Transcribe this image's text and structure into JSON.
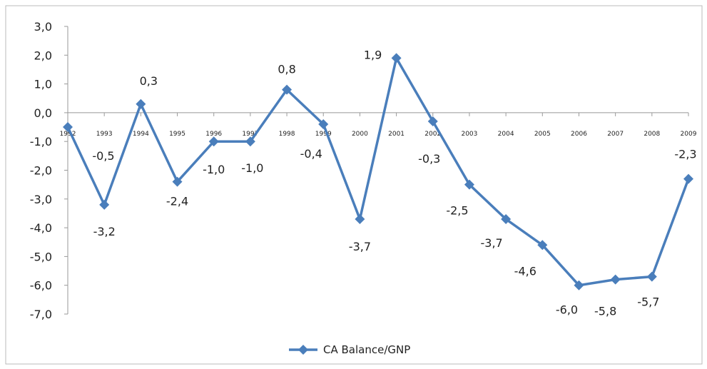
{
  "chart_data": {
    "type": "line",
    "categories": [
      "1992",
      "1993",
      "1994",
      "1995",
      "1996",
      "1997",
      "1998",
      "1999",
      "2000",
      "2001",
      "2002",
      "2003",
      "2004",
      "2005",
      "2006",
      "2007",
      "2008",
      "2009"
    ],
    "series": [
      {
        "name": "CA Balance/GNP",
        "color": "#4a7ebb",
        "values": [
          -0.5,
          -3.2,
          0.3,
          -2.4,
          -1.0,
          -1.0,
          0.8,
          -0.4,
          -3.7,
          1.9,
          -0.3,
          -2.5,
          -3.7,
          -4.6,
          -6.0,
          -5.8,
          -5.7,
          -2.3
        ],
        "value_labels": [
          "-0,5",
          "-3,2",
          "0,3",
          "-2,4",
          "-1,0",
          "-1,0",
          "0,8",
          "-0,4",
          "-3,7",
          "1,9",
          "-0,3",
          "-2,5",
          "-3,7",
          "-4,6",
          "-6,0",
          "-5,8",
          "-5,7",
          "-2,3"
        ]
      }
    ],
    "ylim": [
      -7,
      3
    ],
    "yticks": [
      {
        "value": -7,
        "label": "-7,0"
      },
      {
        "value": -6,
        "label": "-6,0"
      },
      {
        "value": -5,
        "label": "-5,0"
      },
      {
        "value": -4,
        "label": "-4,0"
      },
      {
        "value": -3,
        "label": "-3,0"
      },
      {
        "value": -2,
        "label": "-2,0"
      },
      {
        "value": -1,
        "label": "-1,0"
      },
      {
        "value": 0,
        "label": "0,0"
      },
      {
        "value": 1,
        "label": "1,0"
      },
      {
        "value": 2,
        "label": "2,0"
      },
      {
        "value": 3,
        "label": "3,0"
      }
    ],
    "legend": "bottom"
  }
}
